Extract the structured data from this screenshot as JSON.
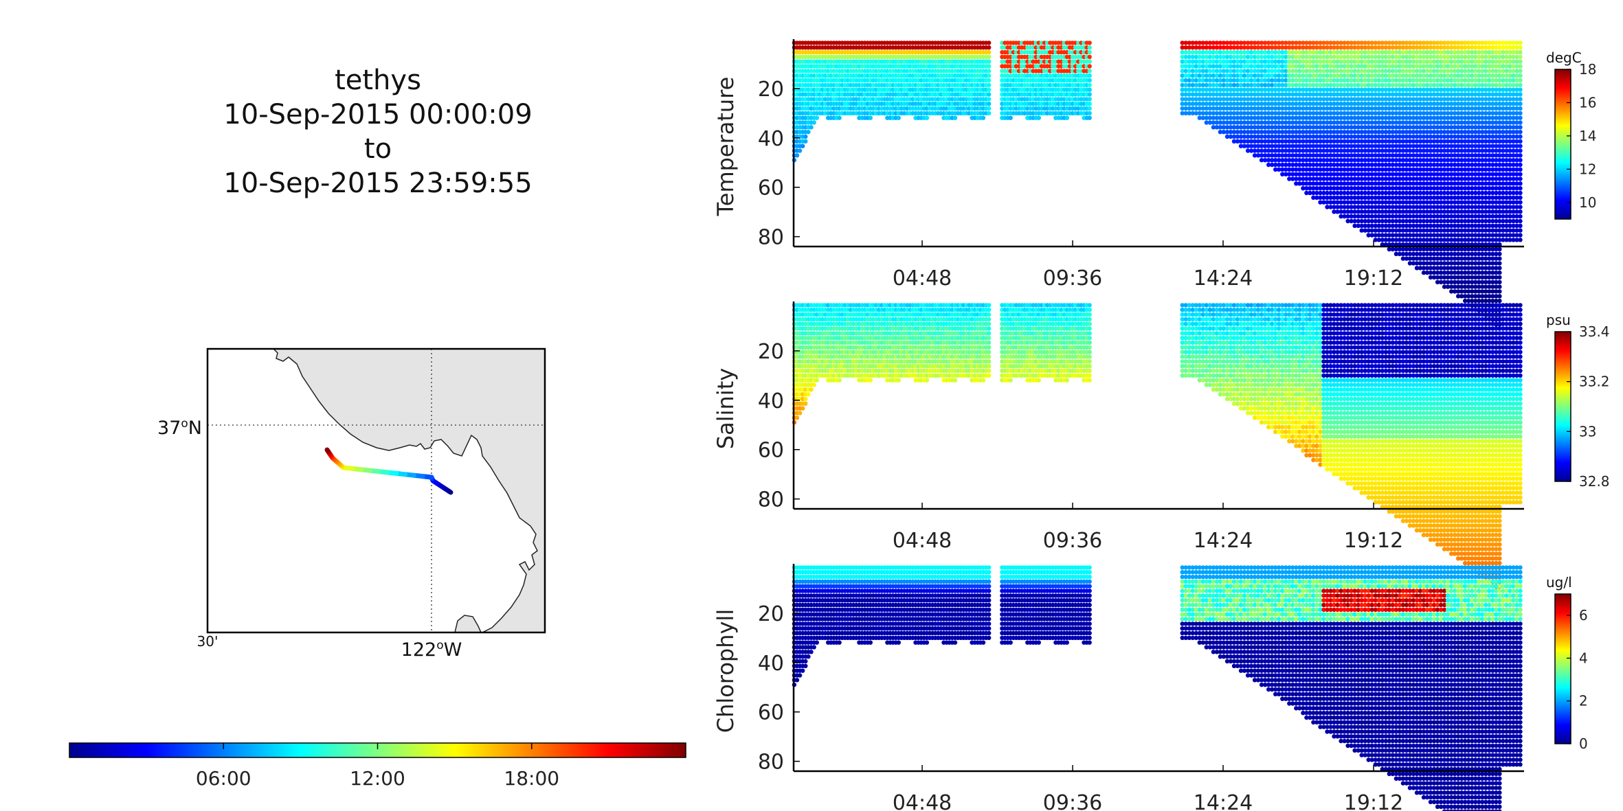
{
  "title_lines": [
    "tethys",
    "10-Sep-2015 00:00:09",
    "to",
    "10-Sep-2015 23:59:55"
  ],
  "map": {
    "lat_label": "37°N",
    "lon_label_left": "30'",
    "lon_label_center": "122°W",
    "land_color": "#e4e4e4"
  },
  "time_colorbar": {
    "ticks": [
      "06:00",
      "12:00",
      "18:00"
    ],
    "colormap": "jet"
  },
  "chart_data": [
    {
      "type": "scatter",
      "ylabel": "Temperature",
      "units": "degC",
      "ylim": [
        84,
        0
      ],
      "yticks": [
        20,
        40,
        60,
        80
      ],
      "xticks": [
        "04:48",
        "09:36",
        "14:24",
        "19:12"
      ],
      "clim": [
        9,
        18
      ],
      "cticks": [
        10,
        12,
        14,
        16,
        18
      ],
      "colormap": "jet"
    },
    {
      "type": "scatter",
      "ylabel": "Salinity",
      "units": "psu",
      "ylim": [
        84,
        0
      ],
      "yticks": [
        20,
        40,
        60,
        80
      ],
      "xticks": [
        "04:48",
        "09:36",
        "14:24",
        "19:12"
      ],
      "clim": [
        32.8,
        33.4
      ],
      "cticks": [
        "32.8",
        "33",
        "33.2",
        "33.4"
      ],
      "colormap": "jet"
    },
    {
      "type": "scatter",
      "ylabel": "Chlorophyll",
      "units": "ug/l",
      "ylim": [
        84,
        0
      ],
      "yticks": [
        20,
        40,
        60,
        80
      ],
      "xticks": [
        "04:48",
        "09:36",
        "14:24",
        "19:12"
      ],
      "clim": [
        0,
        7
      ],
      "cticks": [
        0,
        2,
        4,
        6
      ],
      "colormap": "jet"
    }
  ]
}
